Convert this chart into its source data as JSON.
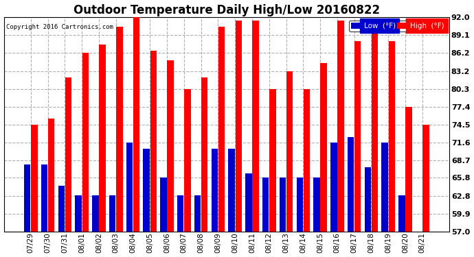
{
  "title": "Outdoor Temperature Daily High/Low 20160822",
  "copyright": "Copyright 2016 Cartronics.com",
  "dates": [
    "07/29",
    "07/30",
    "07/31",
    "08/01",
    "08/02",
    "08/03",
    "08/04",
    "08/05",
    "08/06",
    "08/07",
    "08/08",
    "08/09",
    "08/10",
    "08/11",
    "08/12",
    "08/13",
    "08/14",
    "08/15",
    "08/16",
    "08/17",
    "08/18",
    "08/19",
    "08/20",
    "08/21"
  ],
  "high": [
    74.5,
    75.5,
    82.2,
    86.2,
    87.5,
    90.5,
    92.0,
    86.5,
    85.0,
    80.3,
    82.2,
    90.5,
    91.5,
    91.5,
    80.3,
    83.2,
    80.3,
    84.5,
    91.5,
    88.1,
    90.5,
    88.1,
    77.4,
    74.5
  ],
  "low": [
    68.0,
    68.0,
    64.5,
    63.0,
    63.0,
    63.0,
    71.6,
    70.5,
    65.8,
    63.0,
    63.0,
    70.5,
    70.5,
    66.5,
    65.8,
    65.8,
    65.8,
    65.8,
    71.6,
    72.5,
    67.5,
    71.6,
    63.0,
    57.0
  ],
  "high_color": "#ff0000",
  "low_color": "#0000cc",
  "bg_color": "#ffffff",
  "grid_color": "#b0b0b0",
  "title_fontsize": 12,
  "yticks": [
    57.0,
    59.9,
    62.8,
    65.8,
    68.7,
    71.6,
    74.5,
    77.4,
    80.3,
    83.2,
    86.2,
    89.1,
    92.0
  ],
  "ylim_min": 57.0,
  "ylim_max": 92.0,
  "bar_width": 0.38,
  "bar_gap": 0.03
}
